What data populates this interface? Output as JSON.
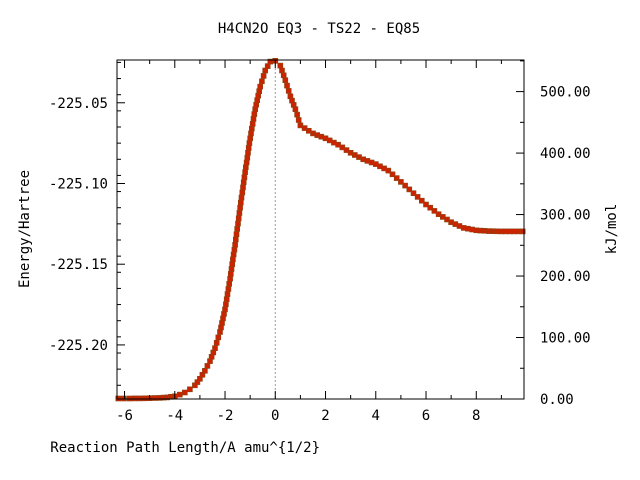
{
  "chart_data": {
    "type": "line",
    "title": "H4CN2O   EQ3 - TS22 - EQ85",
    "xlabel": "Reaction Path Length/A amu^{1/2}",
    "ylabel": "Energy/Hartree",
    "y2label": "kJ/mol",
    "xlim": [
      -6.3,
      9.9
    ],
    "ylim": [
      -225.2335,
      -225.0235
    ],
    "y2lim": [
      0,
      551.4
    ],
    "x_ticks": [
      "-6",
      "-4",
      "-2",
      "0",
      "2",
      "4",
      "6",
      "8"
    ],
    "x_tick_values": [
      -6,
      -4,
      -2,
      0,
      2,
      4,
      6,
      8
    ],
    "y_ticks": [
      "-225.05",
      "-225.10",
      "-225.15",
      "-225.20"
    ],
    "y_tick_values": [
      -225.05,
      -225.1,
      -225.15,
      -225.2
    ],
    "y2_ticks": [
      "0.00",
      "100.00",
      "200.00",
      "300.00",
      "400.00",
      "500.00"
    ],
    "y2_tick_values": [
      0,
      100,
      200,
      300,
      400,
      500
    ],
    "grid": false,
    "ts_marker_x": 0,
    "colors": {
      "line": "#00a000",
      "marker": "#cc2200",
      "marker_edge": "#8b4513",
      "ts_line": "#999999",
      "axis": "#000000"
    },
    "series": [
      {
        "x": [
          -6.25,
          -5.8,
          -5.4,
          -5.0,
          -4.6,
          -4.3,
          -4.0,
          -3.8,
          -3.6,
          -3.4,
          -3.2,
          -3.0,
          -2.8,
          -2.6,
          -2.4,
          -2.2,
          -2.0,
          -1.8,
          -1.6,
          -1.4,
          -1.2,
          -1.0,
          -0.8,
          -0.6,
          -0.4,
          -0.2,
          0.0,
          0.2,
          0.4,
          0.6,
          0.8,
          1.0,
          1.5,
          2.0,
          2.5,
          3.0,
          3.5,
          4.0,
          4.5,
          5.0,
          5.5,
          6.0,
          6.5,
          7.0,
          7.5,
          8.0,
          8.5,
          9.0,
          9.5,
          9.85
        ],
        "y": [
          -225.2332,
          -225.2332,
          -225.2331,
          -225.233,
          -225.2328,
          -225.2325,
          -225.2318,
          -225.2308,
          -225.2295,
          -225.2275,
          -225.225,
          -225.221,
          -225.216,
          -225.21,
          -225.202,
          -225.192,
          -225.178,
          -225.159,
          -225.138,
          -225.115,
          -225.093,
          -225.072,
          -225.054,
          -225.04,
          -225.03,
          -225.0245,
          -225.024,
          -225.027,
          -225.036,
          -225.046,
          -225.054,
          -225.064,
          -225.069,
          -225.072,
          -225.076,
          -225.081,
          -225.085,
          -225.088,
          -225.092,
          -225.099,
          -225.106,
          -225.113,
          -225.119,
          -225.124,
          -225.1275,
          -225.129,
          -225.1295,
          -225.1297,
          -225.1297,
          -225.1297
        ]
      }
    ]
  }
}
